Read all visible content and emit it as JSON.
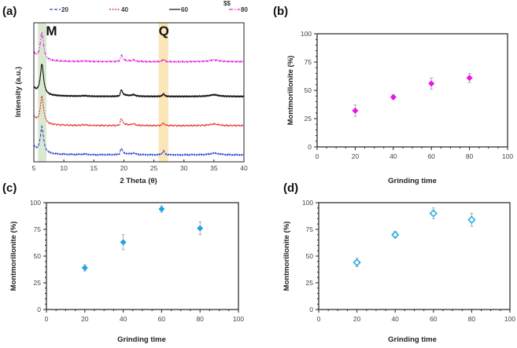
{
  "chart_data": [
    {
      "panel": "(a)",
      "type": "line",
      "xlabel": "2 Theta (θ)",
      "ylabel": "Intensity (a.u.)",
      "xlim": [
        5,
        40
      ],
      "ylim": [
        0,
        100
      ],
      "xticks": [
        5,
        10,
        15,
        20,
        25,
        30,
        35,
        40
      ],
      "legend_extra": "$$",
      "bands": [
        {
          "label": "M",
          "range": [
            5.7,
            7.1
          ],
          "color": "#d9e8cf"
        },
        {
          "label": "Q",
          "range": [
            25.8,
            27.4
          ],
          "color": "#fbe6b8"
        }
      ],
      "series": [
        {
          "name": "20",
          "color": "#2a44c8",
          "dash": "4,2",
          "offset": 5,
          "peak_main": 19,
          "peak_q": 3
        },
        {
          "name": "40",
          "color": "#e02020",
          "dash": "2,1.5",
          "offset": 26,
          "peak_main": 20,
          "peak_q": 2
        },
        {
          "name": "60",
          "color": "#111111",
          "dash": "",
          "offset": 47,
          "peak_main": 22,
          "peak_q": 1.8
        },
        {
          "name": "80",
          "color": "#e020e0",
          "dash": "5,2,1.5,2",
          "offset": 72,
          "peak_main": 20,
          "peak_q": 1.8
        }
      ]
    },
    {
      "panel": "(b)",
      "type": "scatter",
      "xlabel": "Grinding time",
      "ylabel": "Montmorillonite (%)",
      "xlim": [
        0,
        100
      ],
      "ylim": [
        0,
        100
      ],
      "xticks": [
        0,
        20,
        40,
        60,
        80,
        100
      ],
      "yticks": [
        0,
        25,
        50,
        75,
        100
      ],
      "marker": "filled-diamond",
      "color": "#ee10ee",
      "x": [
        20,
        40,
        60,
        80
      ],
      "y": [
        32,
        44,
        56,
        61
      ],
      "err": [
        5,
        2,
        5,
        4
      ]
    },
    {
      "panel": "(c)",
      "type": "scatter",
      "xlabel": "Grinding time",
      "ylabel": "Montmorillonite (%)",
      "xlim": [
        0,
        100
      ],
      "ylim": [
        0,
        100
      ],
      "xticks": [
        0,
        20,
        40,
        60,
        80,
        100
      ],
      "yticks": [
        0,
        25,
        50,
        75,
        100
      ],
      "marker": "filled-diamond",
      "color": "#1aa6e4",
      "x": [
        20,
        40,
        60,
        80
      ],
      "y": [
        39,
        63,
        94,
        76
      ],
      "err": [
        3,
        7,
        3,
        6
      ]
    },
    {
      "panel": "(d)",
      "type": "scatter",
      "xlabel": "Grinding time",
      "ylabel": "Montmorillonite (%)",
      "xlim": [
        0,
        100
      ],
      "ylim": [
        0,
        100
      ],
      "xticks": [
        0,
        20,
        40,
        60,
        80,
        100
      ],
      "yticks": [
        0,
        25,
        50,
        75,
        100
      ],
      "marker": "open-diamond",
      "color": "#1aa6e4",
      "x": [
        20,
        40,
        60,
        80
      ],
      "y": [
        44,
        70,
        90,
        84
      ],
      "err": [
        4,
        3,
        5,
        6
      ]
    }
  ]
}
